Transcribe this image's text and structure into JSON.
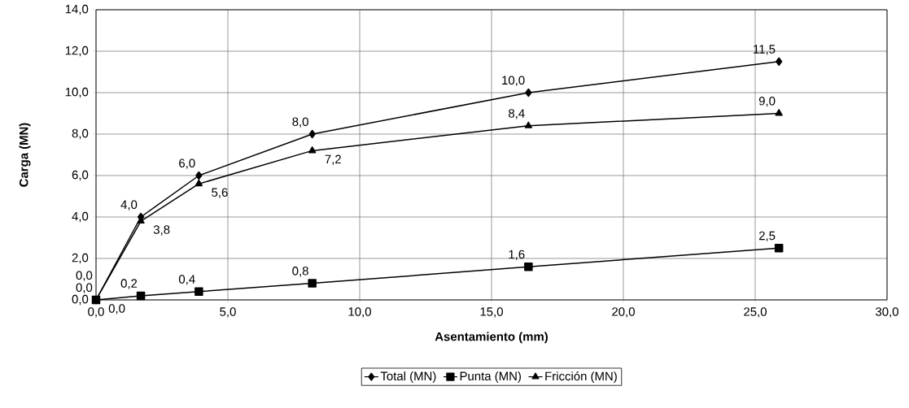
{
  "chart_data": {
    "type": "line",
    "xlabel": "Asentamiento (mm)",
    "ylabel": "Carga (MN)",
    "x": [
      0,
      1.7,
      3.9,
      8.2,
      16.4,
      25.9
    ],
    "series": [
      {
        "name": "Total (MN)",
        "color": "#000000",
        "marker": "diamond",
        "values": [
          0,
          4.0,
          6.0,
          8.0,
          10.0,
          11.5
        ],
        "value_labels": [
          "0,0",
          "4,0",
          "6,0",
          "8,0",
          "10,0",
          "11,5"
        ]
      },
      {
        "name": "Punta (MN)",
        "color": "#000000",
        "marker": "square",
        "values": [
          0,
          0.2,
          0.4,
          0.8,
          1.6,
          2.5
        ],
        "value_labels": [
          "0,0",
          "0,2",
          "0,4",
          "0,8",
          "1,6",
          "2,5"
        ]
      },
      {
        "name": "Fricción (MN)",
        "color": "#000000",
        "marker": "triangle",
        "values": [
          0,
          3.8,
          5.6,
          7.2,
          8.4,
          9.0
        ],
        "value_labels": [
          "0,0",
          "3,8",
          "5,6",
          "7,2",
          "8,4",
          "9,0"
        ]
      }
    ],
    "xlim": [
      0,
      30
    ],
    "ylim": [
      0,
      14
    ],
    "xticks": [
      {
        "value": 0,
        "label": "0,0"
      },
      {
        "value": 5,
        "label": "5,0"
      },
      {
        "value": 10,
        "label": "10,0"
      },
      {
        "value": 15,
        "label": "15,0"
      },
      {
        "value": 20,
        "label": "20,0"
      },
      {
        "value": 25,
        "label": "25,0"
      },
      {
        "value": 30,
        "label": "30,0"
      }
    ],
    "yticks": [
      {
        "value": 0,
        "label": "0,0"
      },
      {
        "value": 2,
        "label": "2,0"
      },
      {
        "value": 4,
        "label": "4,0"
      },
      {
        "value": 6,
        "label": "6,0"
      },
      {
        "value": 8,
        "label": "8,0"
      },
      {
        "value": 10,
        "label": "10,0"
      },
      {
        "value": 12,
        "label": "12,0"
      },
      {
        "value": 14,
        "label": "14,0"
      }
    ],
    "grid": true,
    "legend": "bottom",
    "line_style": "solid"
  }
}
